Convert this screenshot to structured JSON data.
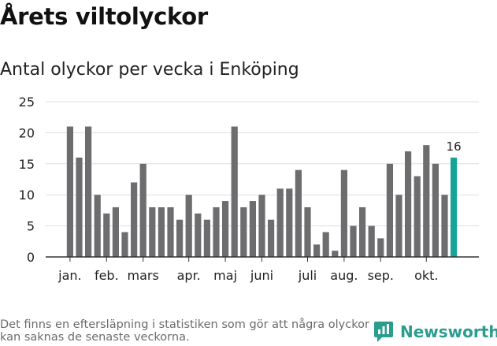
{
  "title": "Årets viltolyckor",
  "subtitle": "Antal olyckor per vecka i Enköping",
  "footnote": "Det finns en eftersläpning i statistiken som gör att några olyckor kan saknas de senaste veckorna.",
  "brand": "Newsworthy",
  "colors": {
    "bar": "#6d6d70",
    "highlight": "#17a398",
    "grid": "#dddddd",
    "axis": "#333333",
    "brand": "#2a9d8f"
  },
  "chart_data": {
    "type": "bar",
    "title": "Årets viltolyckor",
    "subtitle": "Antal olyckor per vecka i Enköping",
    "ylim": [
      0,
      25
    ],
    "yticks": [
      0,
      5,
      10,
      15,
      20,
      25
    ],
    "grid": true,
    "values": [
      21,
      16,
      21,
      10,
      7,
      8,
      4,
      12,
      15,
      8,
      8,
      8,
      6,
      10,
      7,
      6,
      8,
      9,
      21,
      8,
      9,
      10,
      6,
      11,
      11,
      14,
      8,
      2,
      4,
      1,
      14,
      5,
      8,
      5,
      3,
      15,
      10,
      17,
      13,
      18,
      15,
      10,
      16
    ],
    "highlight_index": 42,
    "highlight_label": "16",
    "month_labels": [
      {
        "label": "jan.",
        "at_bar": 0
      },
      {
        "label": "feb.",
        "at_bar": 4
      },
      {
        "label": "mars",
        "at_bar": 8
      },
      {
        "label": "apr.",
        "at_bar": 13
      },
      {
        "label": "maj",
        "at_bar": 17
      },
      {
        "label": "juni",
        "at_bar": 21
      },
      {
        "label": "juli",
        "at_bar": 26
      },
      {
        "label": "aug.",
        "at_bar": 30
      },
      {
        "label": "sep.",
        "at_bar": 34
      },
      {
        "label": "okt.",
        "at_bar": 39
      }
    ]
  }
}
